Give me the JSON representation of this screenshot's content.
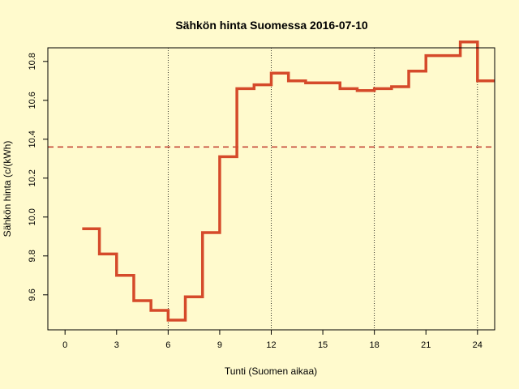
{
  "chart_data": {
    "type": "line",
    "step": true,
    "title": "Sähkön hinta Suomessa 2016-07-10",
    "xlabel": "Tunti (Suomen aikaa)",
    "ylabel": "Sähkön hinta (c/(kWh)",
    "xlim": [
      -1,
      25
    ],
    "ylim": [
      9.42,
      10.87
    ],
    "x_ticks": [
      0,
      3,
      6,
      9,
      12,
      15,
      18,
      21,
      24
    ],
    "y_ticks": [
      9.6,
      9.8,
      10.0,
      10.2,
      10.4,
      10.6,
      10.8
    ],
    "y_tick_labels": [
      "9.6",
      "9.8",
      "10.0",
      "10.2",
      "10.4",
      "10.6",
      "10.8"
    ],
    "vertical_lines": [
      6,
      12,
      18,
      24
    ],
    "mean_line": 10.36,
    "series": [
      {
        "x": [
          1,
          2,
          3,
          4,
          5,
          6,
          7,
          8,
          9,
          10,
          11,
          12,
          13,
          14,
          15,
          16,
          17,
          18,
          19,
          20,
          21,
          22,
          23,
          24
        ],
        "values": [
          9.94,
          9.81,
          9.7,
          9.57,
          9.52,
          9.47,
          9.59,
          9.92,
          10.31,
          10.66,
          10.68,
          10.74,
          10.7,
          10.69,
          10.69,
          10.66,
          10.65,
          10.66,
          10.67,
          10.75,
          10.83,
          10.83,
          10.9,
          10.7
        ]
      }
    ],
    "colors": {
      "line": "#d54a2a",
      "mean_line": "#c0392b",
      "background": "#fffacd",
      "grid": "#000000"
    }
  }
}
